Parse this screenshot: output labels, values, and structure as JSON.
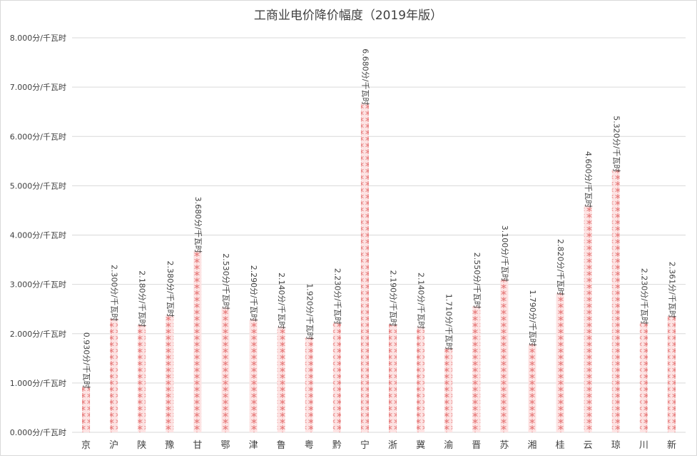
{
  "chart_data": {
    "type": "bar",
    "title": "工商业电价降价幅度（2019年版）",
    "xlabel": "",
    "ylabel": "",
    "ylim": [
      0,
      8
    ],
    "yticks": [
      "0.000分/千瓦时",
      "1.000分/千瓦时",
      "2.000分/千瓦时",
      "3.000分/千瓦时",
      "4.000分/千瓦时",
      "5.000分/千瓦时",
      "6.000分/千瓦时",
      "7.000分/千瓦时",
      "8.000分/千瓦时"
    ],
    "grid": true,
    "legend": "none",
    "bar_color": "#f4a6a6",
    "bar_pattern_color": "#e57373",
    "categories": [
      "京",
      "沪",
      "陕",
      "豫",
      "甘",
      "鄂",
      "津",
      "鲁",
      "粤",
      "黔",
      "宁",
      "浙",
      "冀",
      "渝",
      "晋",
      "苏",
      "湘",
      "桂",
      "云",
      "琼",
      "川",
      "新"
    ],
    "values": [
      0.93,
      2.3,
      2.18,
      2.38,
      3.68,
      2.53,
      2.29,
      2.14,
      1.92,
      2.23,
      6.68,
      2.19,
      2.14,
      1.71,
      2.55,
      3.1,
      1.79,
      2.82,
      4.6,
      5.32,
      2.23,
      2.361
    ],
    "data_labels": [
      "0.930分/千瓦时",
      "2.300分/千瓦时",
      "2.180分/千瓦时",
      "2.380分/千瓦时",
      "3.680分/千瓦时",
      "2.530分/千瓦时",
      "2.290分/千瓦时",
      "2.140分/千瓦时",
      "1.920分/千瓦时",
      "2.230分/千瓦时",
      "6.680分/千瓦时",
      "2.190分/千瓦时",
      "2.140分/千瓦时",
      "1.710分/千瓦时",
      "2.550分/千瓦时",
      "3.100分/千瓦时",
      "1.790分/千瓦时",
      "2.820分/千瓦时",
      "4.600分/千瓦时",
      "5.320分/千瓦时",
      "2.230分/千瓦时",
      "2.361分/千瓦时"
    ]
  }
}
